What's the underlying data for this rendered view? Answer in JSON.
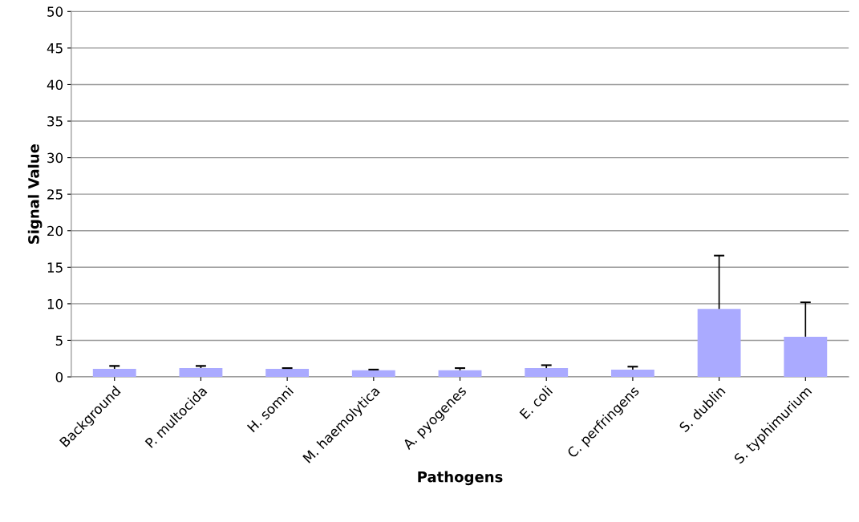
{
  "chart_data": {
    "type": "bar",
    "xlabel": "Pathogens",
    "ylabel": "Signal Value",
    "categories": [
      "Background",
      "P. multocida",
      "H. somni",
      "M. haemolytica",
      "A. pyogenes",
      "E. coli",
      "C. perfringens",
      "S. dublin",
      "S. typhimurium"
    ],
    "values": [
      1.1,
      1.2,
      1.1,
      0.9,
      0.9,
      1.2,
      1.0,
      9.3,
      5.5
    ],
    "errors": [
      [
        1.1,
        1.5
      ],
      [
        1.2,
        1.5
      ],
      [
        1.1,
        1.2
      ],
      [
        0.9,
        1.0
      ],
      [
        0.9,
        1.2
      ],
      [
        1.2,
        1.6
      ],
      [
        1.0,
        1.4
      ],
      [
        9.3,
        16.6
      ],
      [
        5.5,
        10.2
      ]
    ],
    "color": "#aaaaff",
    "ylim": [
      0,
      50
    ],
    "yticks": [
      0,
      5,
      10,
      15,
      20,
      25,
      30,
      35,
      40,
      45,
      50
    ],
    "grid": "y"
  }
}
